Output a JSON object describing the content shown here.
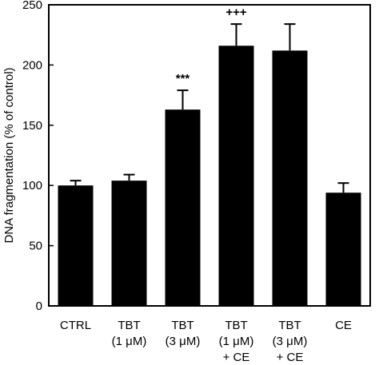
{
  "chart_data": {
    "type": "bar",
    "categories": [
      [
        "CTRL"
      ],
      [
        "TBT",
        "(1 μM)"
      ],
      [
        "TBT",
        "(3 μM)"
      ],
      [
        "TBT",
        "(1 μM)",
        "+ CE"
      ],
      [
        "TBT",
        "(3 μM)",
        "+ CE"
      ],
      [
        "CE"
      ]
    ],
    "values": [
      100,
      104,
      163,
      216,
      212,
      94
    ],
    "errors": [
      4,
      5,
      16,
      18,
      22,
      8
    ],
    "annotations": [
      "",
      "",
      "***",
      "+++",
      "",
      ""
    ],
    "xlabel": "",
    "ylabel": "DNA fragmentation (% of control)",
    "ylim": [
      0,
      250
    ],
    "yticks": [
      0,
      50,
      100,
      150,
      200,
      250
    ],
    "grid": false,
    "bar_color": "#000000"
  }
}
